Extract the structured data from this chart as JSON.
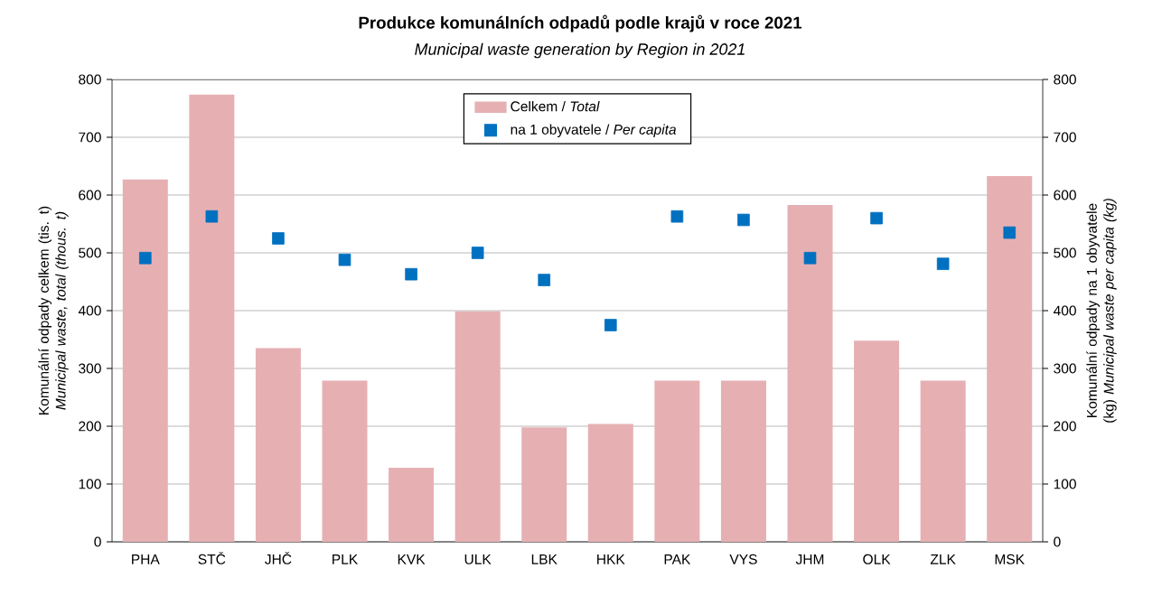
{
  "chart_data": {
    "type": "bar",
    "title": "Produkce komunálních odpadů podle krajů v roce 2021",
    "subtitle": "Municipal waste generation by Region in 2021",
    "ylabel": "Komunální odpady celkem (tis. t) *Municipal waste, total (thous. t)*",
    "y2label": "Komunální odpady na 1 obyvatele (kg) *Municipal waste per capita (kg)*",
    "categories": [
      "PHA",
      "STČ",
      "JHČ",
      "PLK",
      "KVK",
      "ULK",
      "LBK",
      "HKK",
      "PAK",
      "VYS",
      "JHM",
      "OLK",
      "ZLK",
      "MSK"
    ],
    "series": [
      {
        "name": "Celkem / *Total*",
        "color": "#e6b0b3",
        "values": [
          627,
          774,
          335,
          279,
          128,
          399,
          198,
          204,
          279,
          279,
          583,
          348,
          279,
          633
        ]
      },
      {
        "name": "na 1 obyvatele / *Per capita*",
        "type": "scatter",
        "axis": "y2",
        "color": "#0070c0",
        "values": [
          491,
          563,
          525,
          488,
          463,
          500,
          453,
          375,
          563,
          557,
          491,
          560,
          481,
          535
        ]
      }
    ],
    "ylim": [
      0,
      800
    ],
    "yticks": [
      0,
      100,
      200,
      300,
      400,
      500,
      600,
      700,
      800
    ],
    "y2lim": [
      0,
      800
    ],
    "y2ticks": [
      0,
      100,
      200,
      300,
      400,
      500,
      600,
      700,
      800
    ],
    "grid": "y",
    "legend": "top",
    "marker": "square"
  }
}
